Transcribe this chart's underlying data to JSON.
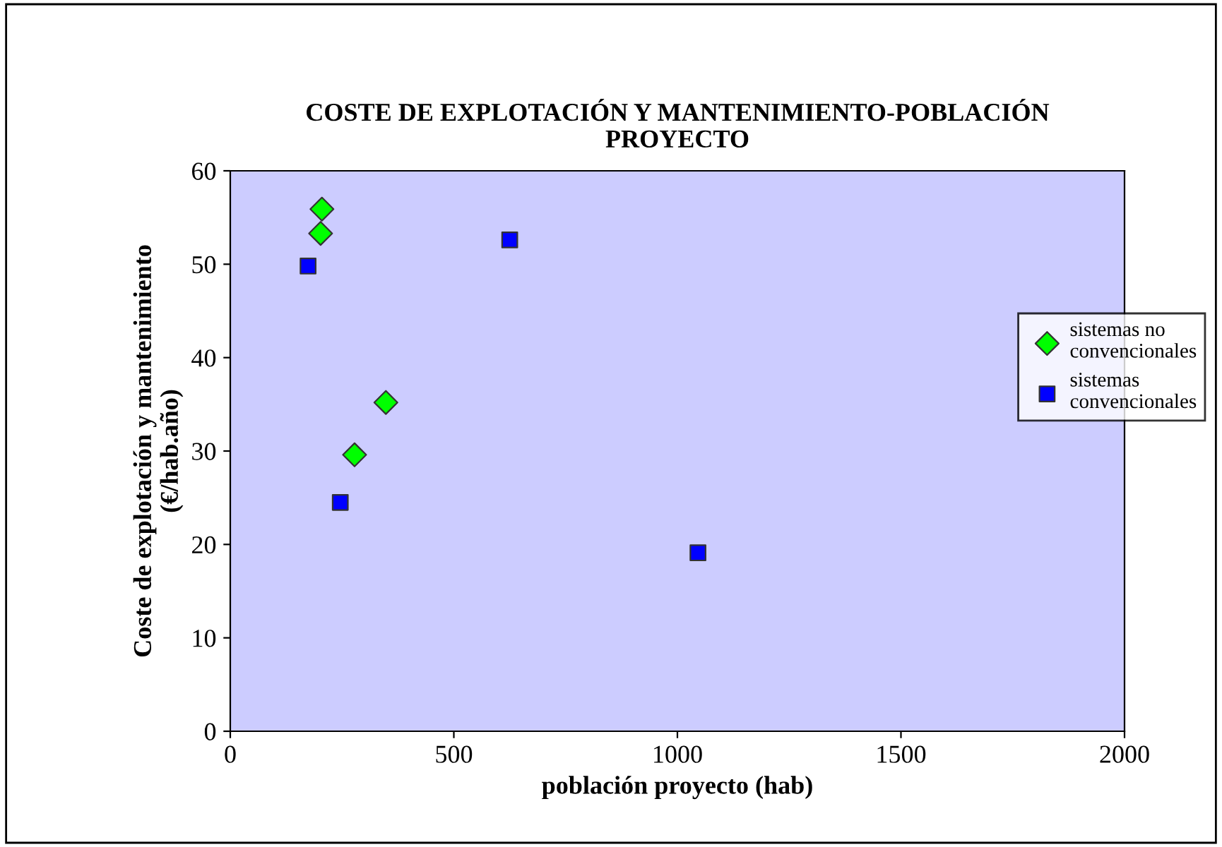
{
  "chart_data": {
    "type": "scatter",
    "title": "COSTE DE EXPLOTACIÓN Y MANTENIMIENTO-POBLACIÓN\nPROYECTO",
    "xlabel": "población proyecto (hab)",
    "ylabel": "Coste de explotación y mantenimiento\n(€/hab.año)",
    "series": [
      {
        "name": "sistemas no\nconvencionales",
        "color": "#00ff00",
        "marker": "diamond",
        "x": [
          205,
          202,
          348,
          278
        ],
        "values": [
          55.9,
          53.3,
          35.2,
          29.6
        ]
      },
      {
        "name": "sistemas\nconvencionales",
        "color": "#0000ff",
        "marker": "square",
        "x": [
          174,
          625,
          246,
          1046
        ],
        "values": [
          49.8,
          52.6,
          24.5,
          19.1
        ]
      }
    ],
    "xlim": [
      0,
      2000
    ],
    "xticks": [
      0,
      500,
      1000,
      1500,
      2000
    ],
    "ylim": [
      0,
      60
    ],
    "yticks": [
      0,
      10,
      20,
      30,
      40,
      50,
      60
    ],
    "grid": false,
    "legend": "right"
  }
}
